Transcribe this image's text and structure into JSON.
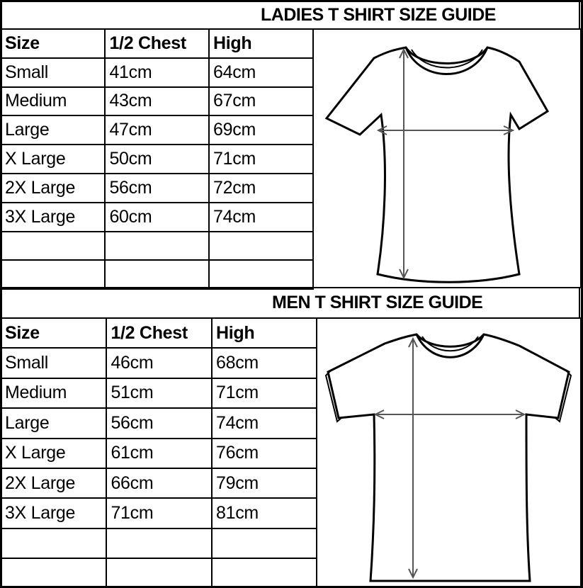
{
  "ladies": {
    "title": "LADIES T SHIRT SIZE GUIDE",
    "headers": [
      "Size",
      "1/2 Chest",
      "High"
    ],
    "rows": [
      [
        "Small",
        "41cm",
        "64cm"
      ],
      [
        "Medium",
        "43cm",
        "67cm"
      ],
      [
        "Large",
        "47cm",
        "69cm"
      ],
      [
        "X Large",
        "50cm",
        "71cm"
      ],
      [
        "2X Large",
        "56cm",
        "72cm"
      ],
      [
        "3X Large",
        "60cm",
        "74cm"
      ],
      [
        "",
        "",
        ""
      ],
      [
        "",
        "",
        ""
      ]
    ],
    "illustration_icon": "ladies-tshirt-diagram"
  },
  "men": {
    "title": "MEN T SHIRT SIZE GUIDE",
    "headers": [
      "Size",
      "1/2 Chest",
      "High"
    ],
    "rows": [
      [
        "Small",
        "46cm",
        "68cm"
      ],
      [
        "Medium",
        "51cm",
        "71cm"
      ],
      [
        "Large",
        "56cm",
        "74cm"
      ],
      [
        "X Large",
        "61cm",
        "76cm"
      ],
      [
        "2X Large",
        "66cm",
        "79cm"
      ],
      [
        "3X Large",
        "71cm",
        "81cm"
      ],
      [
        "",
        "",
        ""
      ],
      [
        "",
        "",
        ""
      ]
    ],
    "illustration_icon": "men-tshirt-diagram"
  }
}
